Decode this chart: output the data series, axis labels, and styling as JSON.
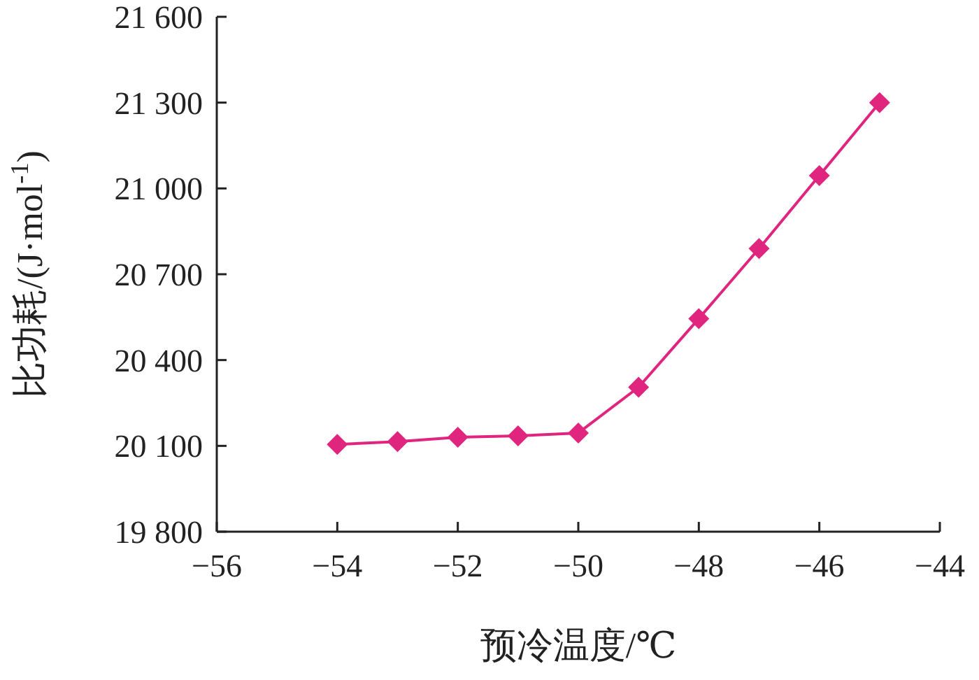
{
  "chart_data": {
    "type": "line",
    "xlabel": "预冷温度/℃",
    "ylabel": "比功耗/(J·mol$^{-1}$)",
    "x": [
      -54,
      -53,
      -52,
      -51,
      -50,
      -49,
      -48,
      -47,
      -46,
      -45
    ],
    "series": [
      {
        "color": "#e0257f",
        "values": [
          20105,
          20115,
          20130,
          20135,
          20145,
          20305,
          20545,
          20790,
          21045,
          21300
        ]
      }
    ],
    "xlim": [
      -56,
      -44
    ],
    "xticks": [
      {
        "value": -56,
        "label": "−56"
      },
      {
        "value": -54,
        "label": "−54"
      },
      {
        "value": -52,
        "label": "−52"
      },
      {
        "value": -50,
        "label": "−50"
      },
      {
        "value": -48,
        "label": "−48"
      },
      {
        "value": -46,
        "label": "−46"
      },
      {
        "value": -44,
        "label": "−44"
      }
    ],
    "ylim": [
      19800,
      21600
    ],
    "yticks": [
      {
        "value": 19800,
        "label": "19 800"
      },
      {
        "value": 20100,
        "label": "20 100"
      },
      {
        "value": 20400,
        "label": "20 400"
      },
      {
        "value": 20700,
        "label": "20 700"
      },
      {
        "value": 21000,
        "label": "21 000"
      },
      {
        "value": 21300,
        "label": "21 300"
      },
      {
        "value": 21600,
        "label": "21 600"
      }
    ],
    "grid": false,
    "marker": "diamond",
    "line_style": "solid"
  }
}
